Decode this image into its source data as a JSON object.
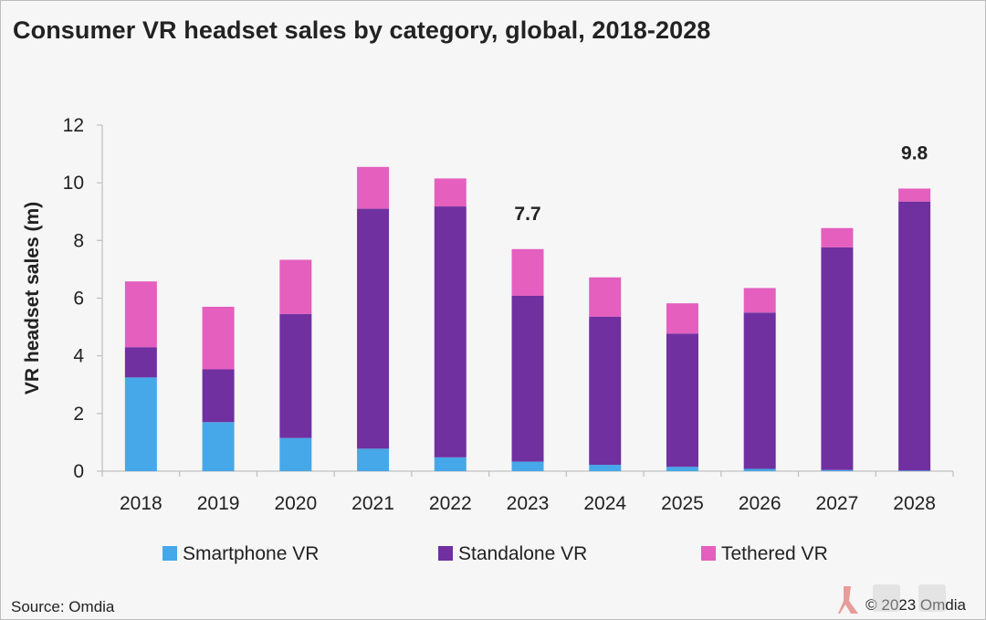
{
  "title": "Consumer VR headset sales by category, global, 2018-2028",
  "source": "Source: Omdia",
  "copyright": "© 2023 Omdia",
  "colors": {
    "smartphone": "#46a8e8",
    "standalone": "#7030a0",
    "tethered": "#e45fbe",
    "axis": "#bfbfbf",
    "text": "#222222"
  },
  "chart_data": {
    "type": "bar",
    "stacked": true,
    "categories": [
      "2018",
      "2019",
      "2020",
      "2021",
      "2022",
      "2023",
      "2024",
      "2025",
      "2026",
      "2027",
      "2028"
    ],
    "series": [
      {
        "name": "Smartphone VR",
        "color": "#46a8e8",
        "values": [
          3.25,
          1.7,
          1.15,
          0.78,
          0.48,
          0.33,
          0.22,
          0.15,
          0.08,
          0.04,
          0.02
        ]
      },
      {
        "name": "Standalone VR",
        "color": "#7030a0",
        "values": [
          1.05,
          1.83,
          4.3,
          8.32,
          8.7,
          5.75,
          5.14,
          4.62,
          5.42,
          7.72,
          9.33
        ]
      },
      {
        "name": "Tethered VR",
        "color": "#e45fbe",
        "values": [
          2.28,
          2.17,
          1.88,
          1.45,
          0.97,
          1.62,
          1.36,
          1.05,
          0.85,
          0.67,
          0.45
        ]
      }
    ],
    "annotations": [
      {
        "category": "2023",
        "text": "7.7"
      },
      {
        "category": "2028",
        "text": "9.8"
      }
    ],
    "xlabel": "",
    "ylabel": "VR headset sales (m)",
    "ylim": [
      0,
      12
    ],
    "yticks": [
      0,
      2,
      4,
      6,
      8,
      10,
      12
    ],
    "grid": false,
    "legend": "bottom"
  }
}
